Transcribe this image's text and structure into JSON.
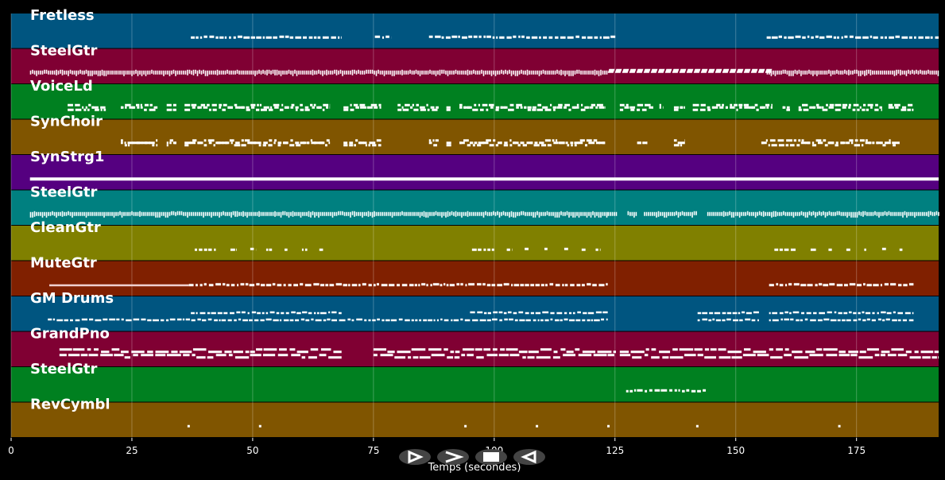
{
  "chart_data": {
    "type": "piano-roll",
    "xlabel": "Temps (secondes)",
    "xlim": [
      0,
      192
    ],
    "xticks": [
      0,
      25,
      50,
      75,
      100,
      125,
      150,
      175
    ],
    "grid": true,
    "tracks": [
      {
        "name": "Fretless",
        "color": "#005580",
        "notes": [
          [
            37.2,
            68.4
          ],
          [
            75.3,
            78.8
          ],
          [
            86.5,
            125.2
          ],
          [
            156.4,
            192
          ]
        ]
      },
      {
        "name": "SteelGtr",
        "color": "#800033",
        "notes": [
          [
            3.9,
            123.5
          ],
          [
            123.5,
            156.4
          ],
          [
            156.4,
            192
          ]
        ]
      },
      {
        "name": "VoiceLd",
        "color": "#008020",
        "notes": [
          [
            11.7,
            19.6
          ],
          [
            22.7,
            30.3
          ],
          [
            32.2,
            34.2
          ],
          [
            35.9,
            66
          ],
          [
            68.8,
            76.6
          ],
          [
            80,
            88.5
          ],
          [
            90.1,
            91.1
          ],
          [
            92.8,
            123
          ],
          [
            126,
            132.9
          ],
          [
            134.2,
            135
          ],
          [
            137.2,
            139.5
          ],
          [
            141.1,
            157.6
          ],
          [
            159.7,
            161.3
          ],
          [
            163,
            180.3
          ],
          [
            181.6,
            186.8
          ]
        ]
      },
      {
        "name": "SynChoir",
        "color": "#805500",
        "notes": [
          [
            22.7,
            30.3
          ],
          [
            32.2,
            34.2
          ],
          [
            35.9,
            66
          ],
          [
            68.8,
            76.6
          ],
          [
            86.5,
            88.5
          ],
          [
            90.1,
            91.1
          ],
          [
            92.8,
            123
          ],
          [
            129.6,
            131.7
          ],
          [
            137.2,
            139.5
          ],
          [
            155.3,
            183.9
          ]
        ]
      },
      {
        "name": "SynStrg1",
        "color": "#550080",
        "notes": [
          [
            3.9,
            192
          ]
        ]
      },
      {
        "name": "SteelGtr",
        "color": "#008080",
        "notes": [
          [
            3.9,
            123.5
          ],
          [
            123.5,
            125.2
          ],
          [
            127.6,
            129.3
          ],
          [
            131,
            142.1
          ],
          [
            144.1,
            156.9
          ],
          [
            156.9,
            192
          ]
        ]
      },
      {
        "name": "CleanGtr",
        "color": "#808000",
        "notes": [
          [
            38,
            42.4
          ],
          [
            45.4,
            46.7
          ],
          [
            49.5,
            50.7
          ],
          [
            52.8,
            54
          ],
          [
            56.6,
            57.2
          ],
          [
            60.2,
            61.3
          ],
          [
            63.8,
            64.6
          ],
          [
            95.4,
            100
          ],
          [
            102.6,
            103.8
          ],
          [
            106.3,
            107.1
          ],
          [
            110.4,
            111.2
          ],
          [
            114.5,
            115.3
          ],
          [
            118.1,
            118.9
          ],
          [
            121,
            122
          ],
          [
            158,
            162.5
          ],
          [
            165.5,
            166.6
          ],
          [
            169.2,
            169.9
          ],
          [
            172.9,
            173.7
          ],
          [
            176.6,
            177
          ],
          [
            180.3,
            181.1
          ],
          [
            183.9,
            184.5
          ]
        ]
      },
      {
        "name": "MuteGtr",
        "color": "#802000",
        "notes": [
          [
            7.9,
            36.8
          ],
          [
            36.8,
            123.5
          ],
          [
            156.9,
            186.8
          ]
        ]
      },
      {
        "name": "GM Drums",
        "color": "#005580",
        "notes": [
          [
            7.6,
            123.5
          ],
          [
            37.2,
            68.4
          ],
          [
            95,
            123.5
          ],
          [
            142.1,
            154.8
          ],
          [
            156.9,
            186.8
          ]
        ]
      },
      {
        "name": "GrandPno",
        "color": "#800033",
        "notes": [
          [
            10,
            68.4
          ],
          [
            75,
            125.2
          ],
          [
            126,
            192
          ]
        ]
      },
      {
        "name": "SteelGtr",
        "color": "#008020",
        "notes": [
          [
            127.3,
            143.8
          ]
        ]
      },
      {
        "name": "RevCymbl",
        "color": "#805500",
        "notes": [
          [
            36.5,
            36.9
          ],
          [
            51.3,
            51.7
          ],
          [
            93.8,
            94.2
          ],
          [
            108.6,
            109
          ],
          [
            123.4,
            123.8
          ],
          [
            141.8,
            142.2
          ],
          [
            171.2,
            171.6
          ]
        ]
      }
    ]
  },
  "controls": [
    {
      "name": "play",
      "icon": "play-outline-icon"
    },
    {
      "name": "forward",
      "icon": "chevron-right-icon"
    },
    {
      "name": "stop",
      "icon": "stop-icon"
    },
    {
      "name": "rewind",
      "icon": "rewind-outline-icon"
    }
  ]
}
